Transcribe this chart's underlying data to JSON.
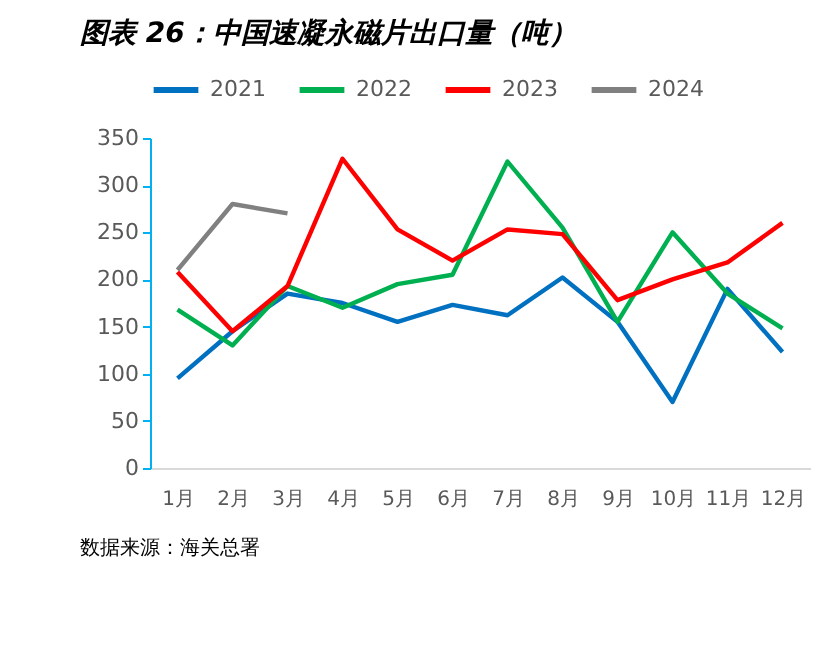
{
  "chart_data": {
    "type": "line",
    "title": "图表 26：中国速凝永磁片出口量（吨）",
    "categories": [
      "1月",
      "2月",
      "3月",
      "4月",
      "5月",
      "6月",
      "7月",
      "8月",
      "9月",
      "10月",
      "11月",
      "12月"
    ],
    "series": [
      {
        "name": "2021",
        "color": "#0070c0",
        "values": [
          95,
          145,
          185,
          175,
          155,
          173,
          162,
          202,
          155,
          70,
          190,
          123
        ]
      },
      {
        "name": "2022",
        "color": "#00b050",
        "values": [
          168,
          130,
          193,
          170,
          195,
          205,
          325,
          255,
          155,
          250,
          185,
          148
        ]
      },
      {
        "name": "2023",
        "color": "#ff0000",
        "values": [
          208,
          145,
          193,
          328,
          253,
          220,
          253,
          248,
          178,
          200,
          218,
          260
        ]
      },
      {
        "name": "2024",
        "color": "#808080",
        "values": [
          210,
          280,
          270,
          null,
          null,
          null,
          null,
          null,
          null,
          null,
          null,
          null
        ]
      }
    ],
    "ylim": [
      0,
      350
    ],
    "yticks": [
      0,
      50,
      100,
      150,
      200,
      250,
      300,
      350
    ],
    "grid": false,
    "legend": "top",
    "marker": "none",
    "line_style": "solid",
    "annotations": [
      "数据来源：海关总署"
    ]
  }
}
